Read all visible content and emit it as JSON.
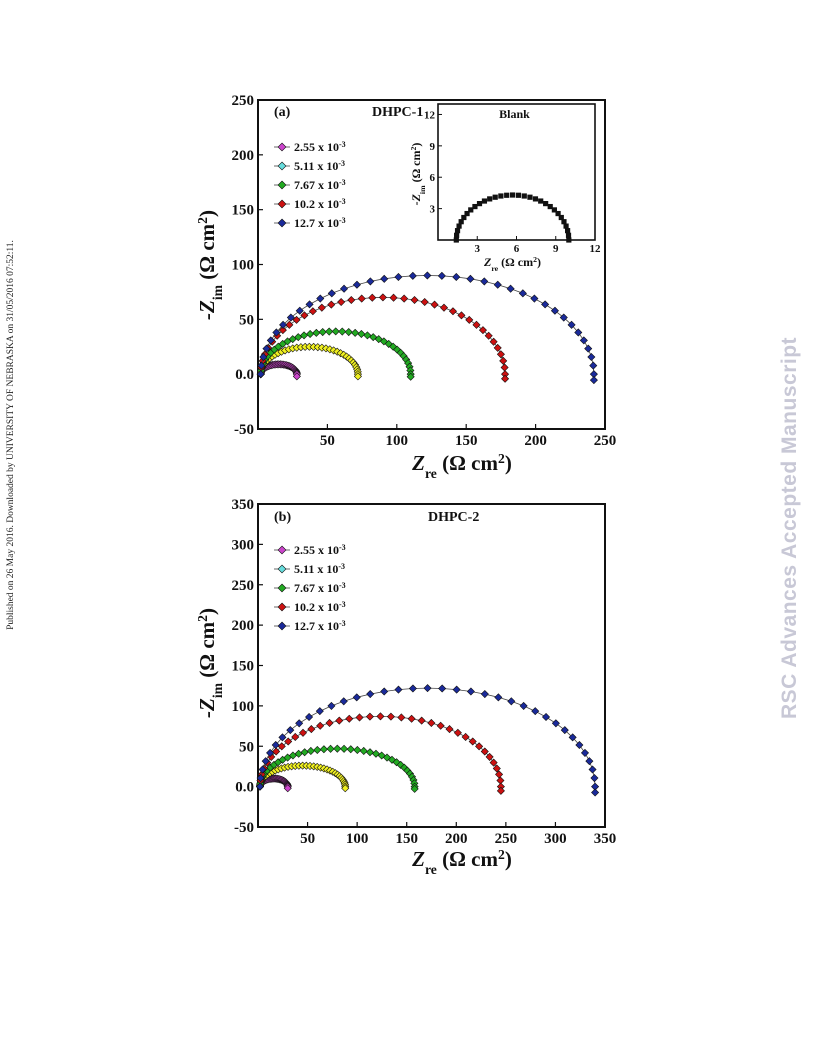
{
  "side_note": "Published on 26 May 2016. Downloaded by UNIVERSITY OF NEBRASKA on 31/05/2016 07:52:11.",
  "watermark": "RSC Advances Accepted Manuscript",
  "colors": {
    "series": [
      "#cc44cc",
      "#f0f020",
      "#22aa22",
      "#cc1111",
      "#1a2a9a"
    ],
    "legend_markers": [
      "#cc44cc",
      "#66dddd",
      "#22aa22",
      "#cc1111",
      "#1a2a9a"
    ],
    "inset": "#111111"
  },
  "legend_labels": [
    "2.55 x 10-3",
    "5.11 x 10-3",
    "7.67 x 10-3",
    "10.2 x 10-3",
    "12.7 x 10-3"
  ],
  "chart_data": [
    {
      "type": "scatter",
      "panel_label": "(a)",
      "title": "DHPC-1",
      "xlabel": "Zre (Ω cm2)",
      "ylabel": "-Zim (Ω cm2)",
      "xlim": [
        0,
        250
      ],
      "ylim": [
        -50,
        250
      ],
      "xticks": [
        50,
        100,
        150,
        200,
        250
      ],
      "yticks": [
        -50,
        0,
        50,
        100,
        150,
        200,
        250
      ],
      "legend_position": "top-left",
      "series": [
        {
          "name": "2.55 x 10-3",
          "semicircle_start": 2,
          "semicircle_end": 28,
          "peak": 9
        },
        {
          "name": "5.11 x 10-3",
          "semicircle_start": 2,
          "semicircle_end": 72,
          "peak": 25
        },
        {
          "name": "7.67 x 10-3",
          "semicircle_start": 2,
          "semicircle_end": 110,
          "peak": 39
        },
        {
          "name": "10.2 x 10-3",
          "semicircle_start": 2,
          "semicircle_end": 178,
          "peak": 70
        },
        {
          "name": "12.7 x 10-3",
          "semicircle_start": 2,
          "semicircle_end": 242,
          "peak": 90
        }
      ],
      "inset": {
        "title": "Blank",
        "xlabel": "Zre (Ω cm2)",
        "ylabel": "-Zim (Ω cm2)",
        "xlim": [
          0,
          12
        ],
        "ylim": [
          0,
          13
        ],
        "xticks": [
          3,
          6,
          9,
          12
        ],
        "yticks": [
          3,
          6,
          9,
          12
        ],
        "semicircle_start": 1.4,
        "semicircle_end": 10,
        "peak": 4.3
      }
    },
    {
      "type": "scatter",
      "panel_label": "(b)",
      "title": "DHPC-2",
      "xlabel": "Zre (Ω cm2)",
      "ylabel": "-Zim (Ω cm2)",
      "xlim": [
        0,
        350
      ],
      "ylim": [
        -50,
        350
      ],
      "xticks": [
        50,
        100,
        150,
        200,
        250,
        300,
        350
      ],
      "yticks": [
        -50,
        0,
        50,
        100,
        150,
        200,
        250,
        300,
        350
      ],
      "legend_position": "top-left",
      "series": [
        {
          "name": "2.55 x 10-3",
          "semicircle_start": 2,
          "semicircle_end": 30,
          "peak": 10
        },
        {
          "name": "5.11 x 10-3",
          "semicircle_start": 2,
          "semicircle_end": 88,
          "peak": 26
        },
        {
          "name": "7.67 x 10-3",
          "semicircle_start": 2,
          "semicircle_end": 158,
          "peak": 47
        },
        {
          "name": "10.2 x 10-3",
          "semicircle_start": 2,
          "semicircle_end": 245,
          "peak": 87
        },
        {
          "name": "12.7 x 10-3",
          "semicircle_start": 2,
          "semicircle_end": 340,
          "peak": 122
        }
      ]
    }
  ]
}
